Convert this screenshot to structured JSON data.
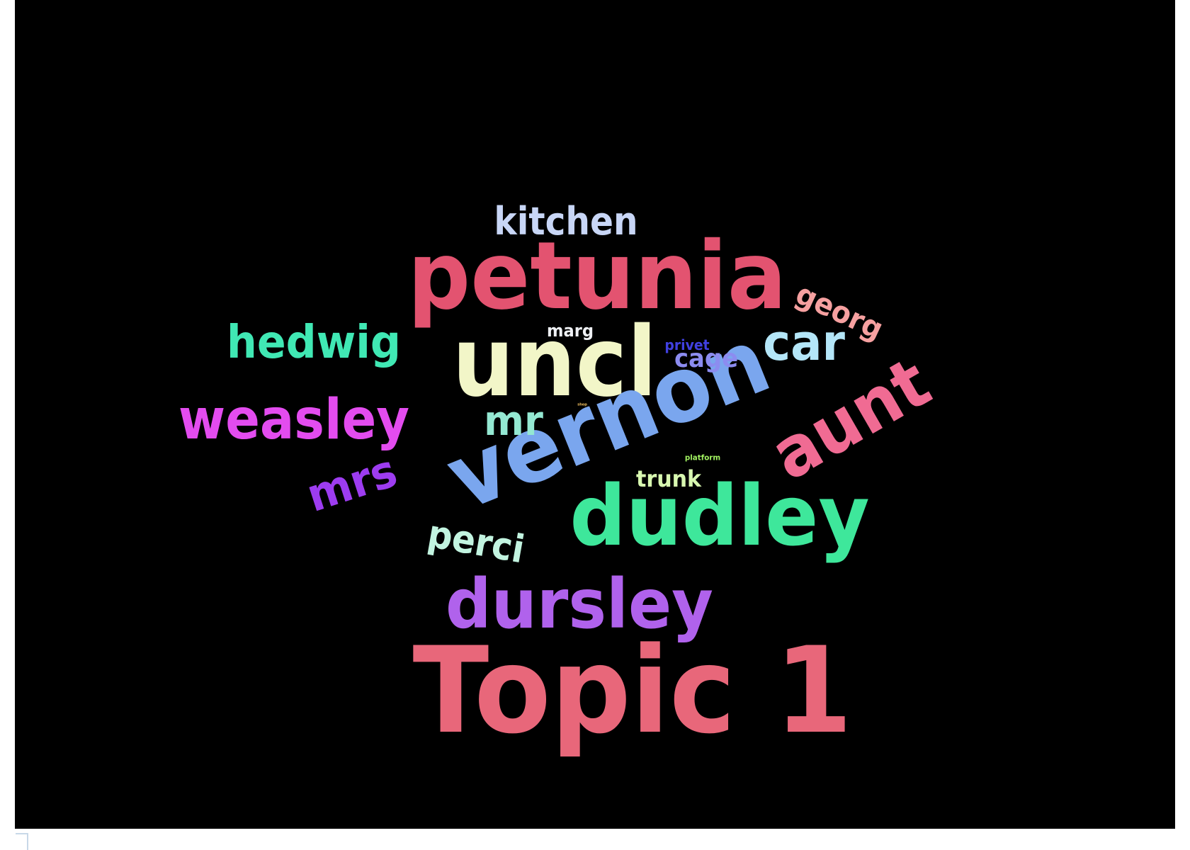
{
  "wordcloud": {
    "background": "#000000",
    "words": [
      {
        "id": "topic",
        "text": "Topic 1",
        "color": "#e8677a"
      },
      {
        "id": "petunia",
        "text": "petunia",
        "color": "#e35370"
      },
      {
        "id": "uncl",
        "text": "uncl",
        "color": "#f2f6c8"
      },
      {
        "id": "vernon",
        "text": "vernon",
        "color": "#7aa6ee"
      },
      {
        "id": "dudley",
        "text": "dudley",
        "color": "#3ee79b"
      },
      {
        "id": "dursley",
        "text": "dursley",
        "color": "#b062ec"
      },
      {
        "id": "weasley",
        "text": "weasley",
        "color": "#e34cef"
      },
      {
        "id": "aunt",
        "text": "aunt",
        "color": "#f06b93"
      },
      {
        "id": "hedwig",
        "text": "hedwig",
        "color": "#40e8b4"
      },
      {
        "id": "kitchen",
        "text": "kitchen",
        "color": "#c8d6f6"
      },
      {
        "id": "car",
        "text": "car",
        "color": "#b4e6f8"
      },
      {
        "id": "georg",
        "text": "georg",
        "color": "#f6a0a0"
      },
      {
        "id": "mrs",
        "text": "mrs",
        "color": "#9d3cf0"
      },
      {
        "id": "mr",
        "text": "mr",
        "color": "#94e8d2"
      },
      {
        "id": "perci",
        "text": "perci",
        "color": "#c2f4e0"
      },
      {
        "id": "cage",
        "text": "cage",
        "color": "#8c8cf0"
      },
      {
        "id": "privet",
        "text": "privet",
        "color": "#4040e0"
      },
      {
        "id": "marg",
        "text": "marg",
        "color": "#eef0f4"
      },
      {
        "id": "trunk",
        "text": "trunk",
        "color": "#d8f8b0"
      },
      {
        "id": "platform",
        "text": "platform",
        "color": "#a0f060"
      },
      {
        "id": "shop",
        "text": "shop",
        "color": "#f0c060"
      }
    ]
  }
}
